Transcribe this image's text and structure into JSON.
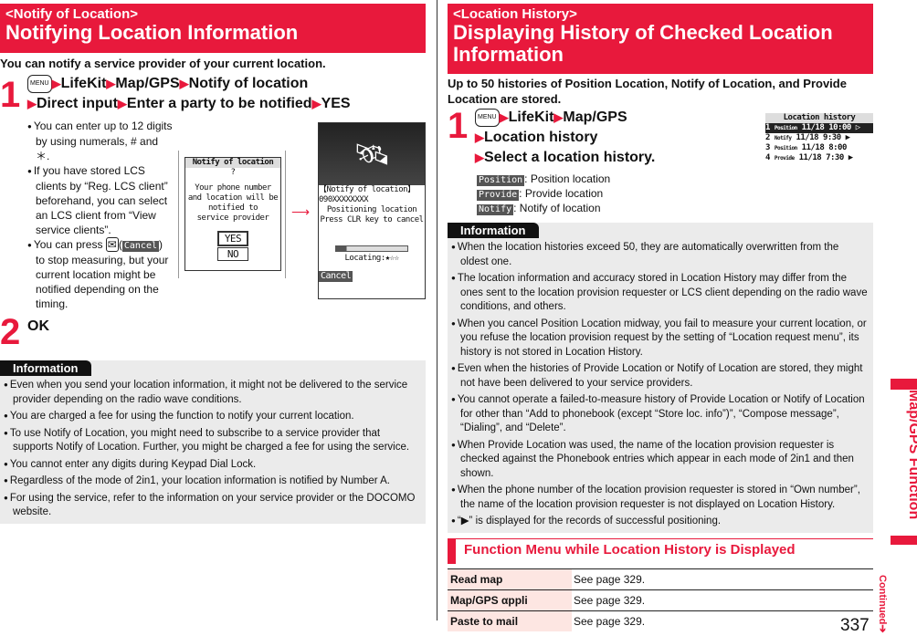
{
  "left": {
    "header": {
      "sub": "<Notify of Location>",
      "title": "Notifying Location Information"
    },
    "lead": "You can notify a service provider of your current location.",
    "step1": {
      "num": "1",
      "menu": "MENU",
      "parts": [
        "LifeKit",
        "Map/GPS",
        "Notify of location",
        "Direct input",
        "Enter a party to be notified",
        "YES"
      ]
    },
    "notes": [
      "You can enter up to 12 digits by using numerals, # and ＊.",
      "If you have stored LCS clients by “Reg. LCS client” beforehand, you can select an LCS client from “View service clients”."
    ],
    "note3": {
      "a": "You can press",
      "key": "✉",
      "soft": "Cancel",
      "b": ") to stop measuring, but your current location might be notified depending on the timing."
    },
    "screen1": {
      "title": "Notify of location",
      "q": "?",
      "msg": [
        "Your phone number",
        "and location will be",
        "notified to",
        "service provider"
      ],
      "yes": "YES",
      "no": "NO"
    },
    "screen2": {
      "title": "【Notify of location】",
      "number": "090XXXXXXXX",
      "msg": [
        "Positioning location",
        "Press CLR key to cancel"
      ],
      "locating": "Locating:★☆☆",
      "cancel": "Cancel"
    },
    "step2": {
      "num": "2",
      "label": "OK"
    },
    "info": {
      "tab": "Information",
      "items": [
        "Even when you send your location information, it might not be delivered to the service provider depending on the radio wave conditions.",
        "You are charged a fee for using the function to notify your current location.",
        "To use Notify of Location, you might need to subscribe to a service provider that supports Notify of Location. Further, you might be charged a fee for using the service.",
        "You cannot enter any digits during Keypad Dial Lock.",
        "Regardless of the mode of 2in1, your location information is notified by Number A.",
        "For using the service, refer to the information on your service provider or the DOCOMO website."
      ]
    }
  },
  "right": {
    "header": {
      "sub": "<Location History>",
      "title": "Displaying History of Checked Location Information"
    },
    "lead": "Up to 50 histories of Position Location, Notify of Location, and Provide Location are stored.",
    "step1": {
      "num": "1",
      "menu": "MENU",
      "parts": [
        "LifeKit",
        "Map/GPS",
        "Location history",
        "Select a location history."
      ]
    },
    "legend": [
      {
        "tag": "Position",
        "text": ": Position location"
      },
      {
        "tag": "Provide",
        "text": ": Provide location"
      },
      {
        "tag": "Notify",
        "text": ": Notify of location"
      }
    ],
    "screen": {
      "title": "Location history",
      "rows": [
        {
          "n": "1",
          "tag": "Position",
          "date": "11/18",
          "time": "10:00",
          "flag": "▷"
        },
        {
          "n": "2",
          "tag": "Notify",
          "date": "11/18",
          "time": "9:30",
          "flag": "▶"
        },
        {
          "n": "3",
          "tag": "Position",
          "date": "11/18",
          "time": "8:00",
          "flag": ""
        },
        {
          "n": "4",
          "tag": "Provide",
          "date": "11/18",
          "time": "7:30",
          "flag": "▶"
        }
      ]
    },
    "info": {
      "tab": "Information",
      "items": [
        "When the location histories exceed 50, they are automatically overwritten from the oldest one.",
        "The location information and accuracy stored in Location History may differ from the ones sent to the location provision requester or LCS client depending on the radio wave conditions, and others.",
        "When you cancel Position Location midway, you fail to measure your current location, or you refuse the location provision request by the setting of “Location request menu”, its history is not stored in Location History.",
        "Even when the histories of Provide Location or Notify of Location are stored, they might not have been delivered to your service providers.",
        "You cannot operate a failed-to-measure history of Provide Location or Notify of Location for other than “Add to phonebook (except “Store loc. info”)”, “Compose message”, “Dialing”, and “Delete”.",
        "When Provide Location was used, the name of the location provision requester is checked against the Phonebook entries which appear in each mode of 2in1 and then shown.",
        "When the phone number of the location provision requester is stored in “Own number”, the name of the location provision requester is not displayed on Location History."
      ],
      "last": {
        "a": "“",
        "flag": "▶",
        "b": "” is displayed for the records of successful positioning."
      }
    },
    "func": {
      "title": "Function Menu while Location History is Displayed",
      "rows": [
        {
          "k": "Read map",
          "v": "See page 329."
        },
        {
          "k": "Map/GPS αppli",
          "v": "See page 329."
        },
        {
          "k": "Paste to mail",
          "v": "See page 329."
        }
      ]
    }
  },
  "side": {
    "tab": "Map/GPS Function",
    "continued": "Continued➔",
    "page": "337"
  },
  "colors": {
    "accent": "#e8193c",
    "info_bg": "#ebebeb",
    "table_key_bg": "#fde6e2"
  }
}
